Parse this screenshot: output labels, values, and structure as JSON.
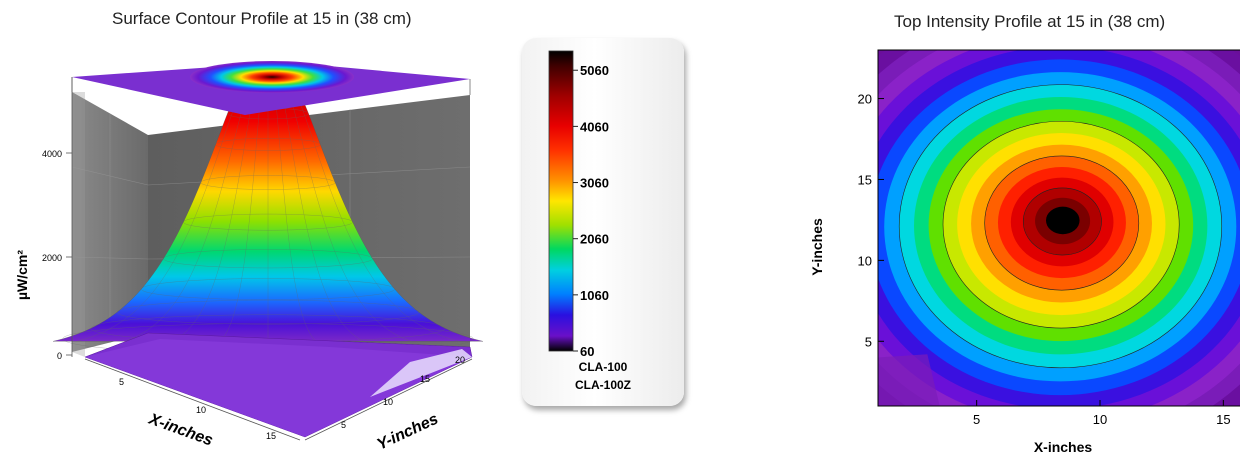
{
  "surface_chart": {
    "title": "Surface Contour Profile at 15 in (38 cm)",
    "zlabel": "µW/cm²",
    "xlabel": "X-inches",
    "ylabel": "Y-inches",
    "z_ticks": [
      "0",
      "2000",
      "4000"
    ],
    "x_ticks": [
      "5",
      "10",
      "15"
    ],
    "y_ticks": [
      "5",
      "10",
      "15",
      "20"
    ]
  },
  "legend": {
    "ticks": [
      "5060",
      "4060",
      "3060",
      "2060",
      "1060",
      "60"
    ],
    "models": [
      "CLA-100",
      "CLA-100Z"
    ],
    "colors": [
      "#000000",
      "#7a0000",
      "#e00000",
      "#ff7a00",
      "#ffe800",
      "#7ddc00",
      "#00d86a",
      "#00d7e0",
      "#0070ff",
      "#2a00d8",
      "#6a00c8",
      "#8a22c8"
    ]
  },
  "top_chart": {
    "title": "Top Intensity Profile at 15 in (38 cm)",
    "xlabel": "X-inches",
    "ylabel": "Y-inches",
    "x_ticks": [
      "5",
      "10",
      "15"
    ],
    "y_ticks": [
      "5",
      "10",
      "15",
      "20"
    ]
  },
  "chart_data": [
    {
      "type": "surface",
      "title": "Surface Contour Profile at 15 in (38 cm)",
      "xlabel": "X-inches",
      "ylabel": "Y-inches",
      "zlabel": "µW/cm²",
      "xlim": [
        1,
        16
      ],
      "ylim": [
        1,
        23
      ],
      "zlim": [
        0,
        5400
      ],
      "z_ticks": [
        0,
        2000,
        4000
      ],
      "peak": {
        "x": 8.5,
        "y": 12.5,
        "value": 5060
      },
      "floor_value": 60,
      "colorbar": {
        "min": 60,
        "max": 5060,
        "ticks": [
          60,
          1060,
          2060,
          3060,
          4060,
          5060
        ]
      }
    },
    {
      "type": "heatmap",
      "title": "Top Intensity Profile at 15 in (38 cm)",
      "xlabel": "X-inches",
      "ylabel": "Y-inches",
      "xlim": [
        1,
        16
      ],
      "ylim": [
        1,
        23
      ],
      "x_ticks": [
        5,
        10,
        15
      ],
      "y_ticks": [
        5,
        10,
        15,
        20
      ],
      "peak": {
        "x": 8.5,
        "y": 12.5,
        "value": 5060
      },
      "contour_levels": [
        60,
        560,
        1060,
        1560,
        2060,
        2560,
        3060,
        3560,
        4060,
        4560,
        5060
      ]
    }
  ]
}
